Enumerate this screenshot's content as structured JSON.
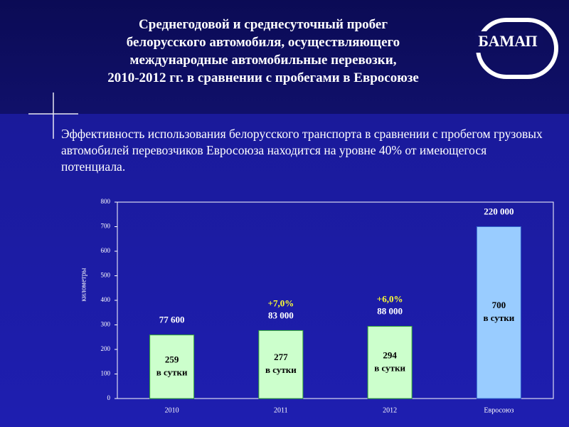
{
  "title_lines": [
    "Среднегодовой и среднесуточный пробег",
    "белорусского автомобиля, осуществляющего",
    "международные автомобильные перевозки,",
    "2010-2012 гг. в сравнении с пробегами в Евросоюзе"
  ],
  "logo": "БАМАП",
  "text": "Эффективность использования белорусского транспорта в сравнении с пробегом грузовых автомобилей перевозчиков Евросоюза находится на уровне 40% от имеющегося потенциала.",
  "chart_data": {
    "type": "bar",
    "y_label": "километры",
    "categories": [
      "2010",
      "2011",
      "2012",
      "Евросоюз"
    ],
    "values": [
      259,
      277,
      294,
      700
    ],
    "value_unit": "в сутки",
    "colors": [
      "#ccffcc",
      "#ccffcc",
      "#ccffcc",
      "#99ccff"
    ],
    "annual": {
      "values": [
        77600,
        83000,
        88000,
        220000
      ],
      "value_labels": [
        "77 600",
        "83 000",
        "88 000",
        "220 000"
      ]
    },
    "growth": {
      "values": [
        null,
        7.0,
        6.0,
        null
      ],
      "value_labels": [
        null,
        "+7,0%",
        "+6,0%",
        null
      ]
    },
    "ylim": [
      0,
      800
    ],
    "yticks": [
      0,
      100,
      200,
      300,
      400,
      500,
      600,
      700,
      800
    ],
    "grid": false
  }
}
